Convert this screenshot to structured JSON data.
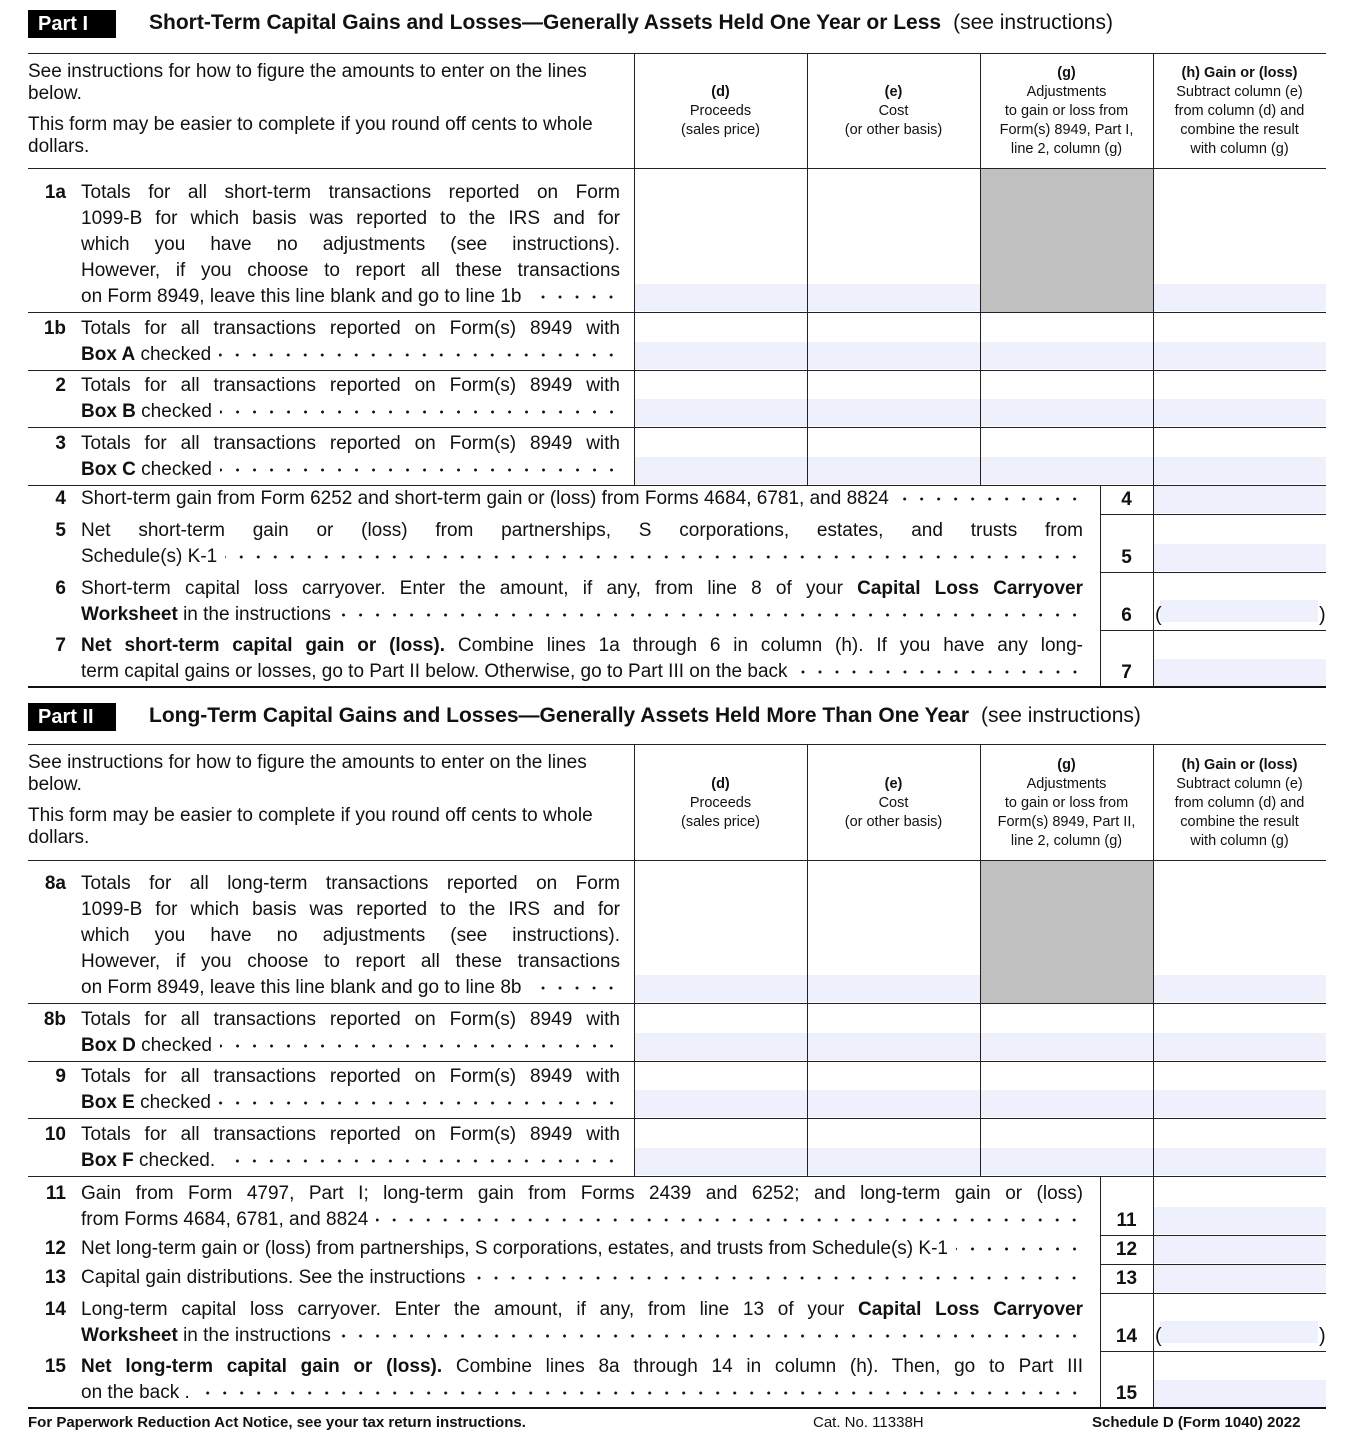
{
  "parts": [
    {
      "label": "Part I",
      "title": "Short-Term Capital Gains and Losses—Generally Assets Held One Year or Less",
      "note": "(see instructions)",
      "intro": [
        "See instructions for how to figure the amounts to enter on the lines below.",
        "This form may be easier to complete if you round off cents to whole dollars."
      ],
      "columns": [
        {
          "head": "(d)",
          "lines": [
            "Proceeds",
            "(sales price)"
          ]
        },
        {
          "head": "(e)",
          "lines": [
            "Cost",
            "(or other basis)"
          ]
        },
        {
          "head": "(g)",
          "lines": [
            "Adjustments",
            "to gain or loss from",
            "Form(s) 8949, Part I,",
            "line 2, column (g)"
          ]
        },
        {
          "head": "(h) Gain or (loss)",
          "lines": [
            "Subtract column (e)",
            "from column (d) and",
            "combine the result",
            "with column (g)"
          ]
        }
      ],
      "rows": [
        {
          "num": "1a",
          "type": "grid",
          "shaded_g": true,
          "lines": [
            [
              {
                "t": "Totals for all short-term transactions reported on Form"
              }
            ],
            [
              {
                "t": "1099-B for which basis was reported to the IRS and for"
              }
            ],
            [
              {
                "t": "which you have no adjustments (see instructions)."
              }
            ],
            [
              {
                "t": "However, if you choose to report all these transactions"
              }
            ],
            [
              {
                "t": "on Form 8949, leave this line blank and go to line 1b"
              }
            ]
          ]
        },
        {
          "num": "1b",
          "type": "grid",
          "lines": [
            [
              {
                "t": "Totals for all transactions reported on Form(s) 8949 with"
              }
            ],
            [
              {
                "t": "Box A",
                "b": true
              },
              {
                "t": " checked"
              }
            ]
          ]
        },
        {
          "num": "2",
          "type": "grid",
          "lines": [
            [
              {
                "t": "Totals for all transactions reported on Form(s) 8949 with"
              }
            ],
            [
              {
                "t": "Box B",
                "b": true
              },
              {
                "t": " checked"
              }
            ]
          ]
        },
        {
          "num": "3",
          "type": "grid",
          "lines": [
            [
              {
                "t": "Totals for all transactions reported on Form(s) 8949 with"
              }
            ],
            [
              {
                "t": "Box C",
                "b": true
              },
              {
                "t": " checked"
              }
            ]
          ]
        },
        {
          "num": "4",
          "type": "short",
          "lines": [
            [
              {
                "t": "Short-term gain from Form 6252 and short-term gain or (loss) from Forms 4684, 6781, and 8824"
              }
            ]
          ]
        },
        {
          "num": "5",
          "type": "short",
          "lines": [
            [
              {
                "t": "Net short-term gain or (loss) from partnerships, S corporations, estates, and trusts from"
              }
            ],
            [
              {
                "t": "Schedule(s) K-1"
              }
            ]
          ]
        },
        {
          "num": "6",
          "type": "short",
          "paren": true,
          "lines": [
            [
              {
                "t": "Short-term capital loss carryover. Enter the amount, if any, from line 8 of your "
              },
              {
                "t": "Capital Loss Carryover",
                "b": true
              }
            ],
            [
              {
                "t": "Worksheet",
                "b": true
              },
              {
                "t": " in the instructions"
              }
            ]
          ]
        },
        {
          "num": "7",
          "type": "short",
          "lines": [
            [
              {
                "t": "Net short-term capital gain or (loss).",
                "b": true
              },
              {
                "t": "  Combine lines 1a through 6 in column (h). If you have any long-"
              }
            ],
            [
              {
                "t": "term capital gains or losses, go to Part II below. Otherwise, go to Part III on the back"
              }
            ]
          ]
        }
      ]
    },
    {
      "label": "Part II",
      "title": "Long-Term Capital Gains and Losses—Generally Assets Held More Than One Year",
      "note": "(see instructions)",
      "intro": [
        "See instructions for how to figure the amounts to enter on the lines below.",
        "This form may be easier to complete if you round off cents to whole dollars."
      ],
      "columns": [
        {
          "head": "(d)",
          "lines": [
            "Proceeds",
            "(sales price)"
          ]
        },
        {
          "head": "(e)",
          "lines": [
            "Cost",
            "(or other basis)"
          ]
        },
        {
          "head": "(g)",
          "lines": [
            "Adjustments",
            "to gain or loss from",
            "Form(s) 8949, Part II,",
            "line 2, column (g)"
          ]
        },
        {
          "head": "(h) Gain or (loss)",
          "lines": [
            "Subtract column (e)",
            "from column (d) and",
            "combine the result",
            "with column (g)"
          ]
        }
      ],
      "rows": [
        {
          "num": "8a",
          "type": "grid",
          "shaded_g": true,
          "lines": [
            [
              {
                "t": "Totals for all long-term transactions reported on Form"
              }
            ],
            [
              {
                "t": "1099-B for which basis was reported to the IRS and for"
              }
            ],
            [
              {
                "t": "which you have no adjustments (see instructions)."
              }
            ],
            [
              {
                "t": "However, if you choose to report all these transactions"
              }
            ],
            [
              {
                "t": "on Form 8949, leave this line blank and go to line 8b"
              }
            ]
          ]
        },
        {
          "num": "8b",
          "type": "grid",
          "lines": [
            [
              {
                "t": "Totals for all transactions reported on Form(s) 8949 with"
              }
            ],
            [
              {
                "t": "Box D",
                "b": true
              },
              {
                "t": " checked"
              }
            ]
          ]
        },
        {
          "num": "9",
          "type": "grid",
          "lines": [
            [
              {
                "t": "Totals for all transactions reported on Form(s) 8949 with"
              }
            ],
            [
              {
                "t": "Box E",
                "b": true
              },
              {
                "t": " checked"
              }
            ]
          ]
        },
        {
          "num": "10",
          "type": "grid",
          "lines": [
            [
              {
                "t": "Totals for all transactions reported on Form(s) 8949 with"
              }
            ],
            [
              {
                "t": "Box F",
                "b": true
              },
              {
                "t": " checked."
              }
            ]
          ]
        },
        {
          "num": "11",
          "type": "short",
          "lines": [
            [
              {
                "t": "Gain from Form 4797, Part I; long-term gain from Forms 2439 and 6252; and long-term gain or (loss)"
              }
            ],
            [
              {
                "t": "from Forms 4684, 6781, and 8824"
              }
            ]
          ]
        },
        {
          "num": "12",
          "type": "short",
          "lines": [
            [
              {
                "t": "Net long-term gain or (loss) from partnerships, S corporations, estates, and trusts from Schedule(s) K-1"
              }
            ]
          ]
        },
        {
          "num": "13",
          "type": "short",
          "lines": [
            [
              {
                "t": "Capital gain distributions. See the instructions"
              }
            ]
          ]
        },
        {
          "num": "14",
          "type": "short",
          "paren": true,
          "lines": [
            [
              {
                "t": "Long-term capital loss carryover. Enter the amount, if any, from line 13 of your "
              },
              {
                "t": "Capital Loss Carryover",
                "b": true
              }
            ],
            [
              {
                "t": "Worksheet",
                "b": true
              },
              {
                "t": " in the instructions"
              }
            ]
          ]
        },
        {
          "num": "15",
          "type": "short",
          "lines": [
            [
              {
                "t": "Net long-term capital gain or (loss).",
                "b": true
              },
              {
                "t": "  Combine lines 8a through 14 in column (h). Then, go to Part III"
              }
            ],
            [
              {
                "t": "on the back ."
              }
            ]
          ]
        }
      ]
    }
  ],
  "parens": {
    "open": "(",
    "close": ")"
  },
  "footer": {
    "notice": "For Paperwork Reduction Act Notice, see your tax return instructions.",
    "cat_no": "Cat. No. 11338H",
    "form_id": "Schedule D (Form 1040) 2022"
  },
  "colors": {
    "fill": "#eef0fb",
    "shade": "#c0c0c0"
  }
}
